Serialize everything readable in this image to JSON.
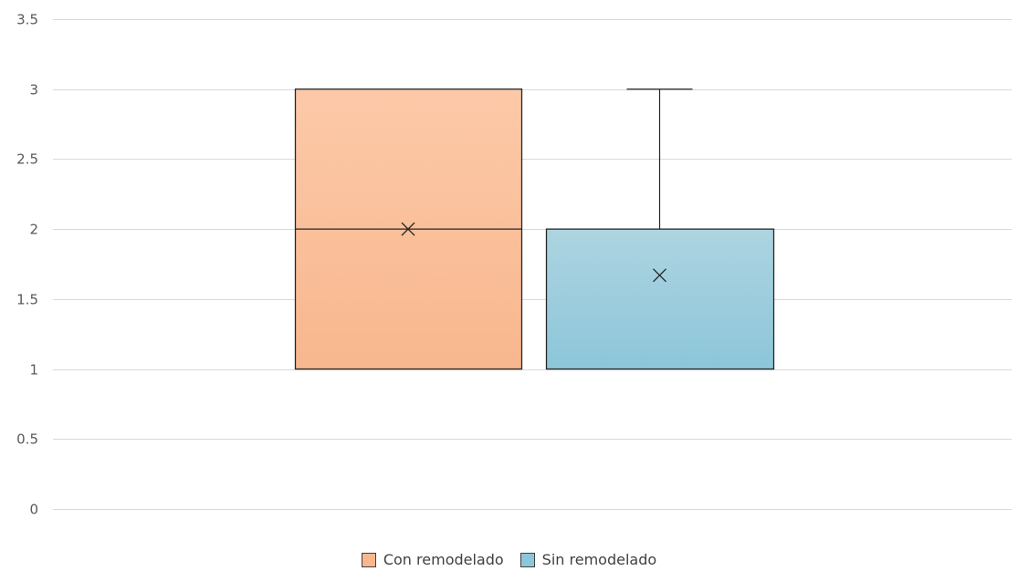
{
  "chart_data": {
    "type": "box",
    "ylim": [
      0,
      3.5
    ],
    "yticks": [
      0,
      0.5,
      1,
      1.5,
      2,
      2.5,
      3,
      3.5
    ],
    "ytick_labels": [
      "0",
      "0.5",
      "1",
      "1.5",
      "2",
      "2.5",
      "3",
      "3.5"
    ],
    "grid": true,
    "legend_position": "bottom",
    "series": [
      {
        "name": "Con remodelado",
        "color": "#f8b78e",
        "color_top": "#fcc9a8",
        "min": 1,
        "q1": 1,
        "median": 2,
        "q3": 3,
        "max": 3,
        "mean": 2
      },
      {
        "name": "Sin remodelado",
        "color": "#8cc6d9",
        "color_top": "#add4e1",
        "min": 1,
        "q1": 1,
        "median": 1,
        "q3": 2,
        "max": 3,
        "mean": 1.67
      }
    ]
  }
}
